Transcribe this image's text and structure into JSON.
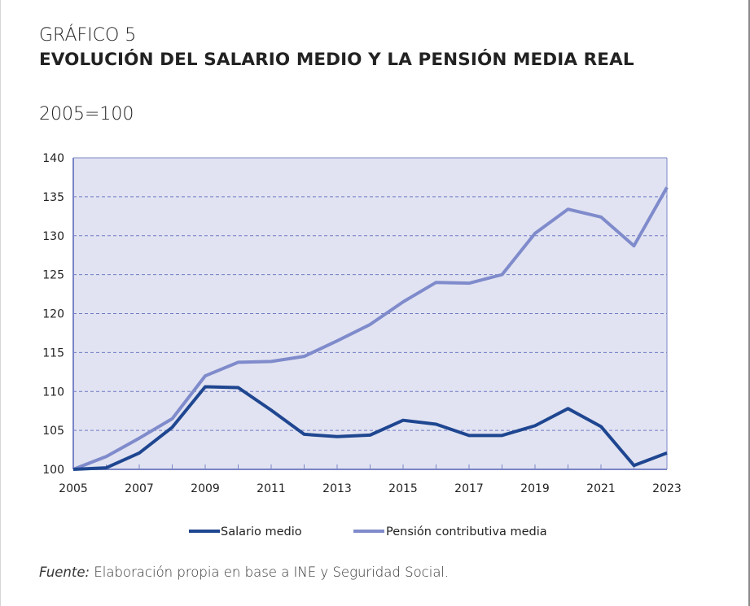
{
  "header": {
    "figure_label": "GRÁFICO 5",
    "title": "EVOLUCIÓN DEL SALARIO MEDIO Y LA PENSIÓN MEDIA REAL",
    "units": "2005=100"
  },
  "source": {
    "label": "Fuente:",
    "text": "Elaboración propia en base a INE y Seguridad Social."
  },
  "colors": {
    "plot_background": "#e1e3f2",
    "axis": "#7b86c6",
    "gridline": "#6f7bc2",
    "salario": "#1f4690",
    "pension": "#7f8bcb"
  },
  "chart_data": {
    "type": "line",
    "title": "EVOLUCIÓN DEL SALARIO MEDIO Y LA PENSIÓN MEDIA REAL",
    "subtitle": "2005=100",
    "xlabel": "",
    "ylabel": "",
    "x": [
      2005,
      2006,
      2007,
      2008,
      2009,
      2010,
      2011,
      2012,
      2013,
      2014,
      2015,
      2016,
      2017,
      2018,
      2019,
      2020,
      2021,
      2022,
      2023
    ],
    "x_tick_labels": [
      "2005",
      "2007",
      "2009",
      "2011",
      "2013",
      "2015",
      "2017",
      "2019",
      "2021",
      "2023"
    ],
    "y_ticks": [
      100,
      105,
      110,
      115,
      120,
      125,
      130,
      135,
      140
    ],
    "y_tick_labels": [
      "100",
      "105",
      "110",
      "115",
      "120",
      "125",
      "130",
      "135",
      "140"
    ],
    "xlim": [
      2005,
      2023
    ],
    "ylim": [
      100,
      140
    ],
    "grid": "horizontal-dashed",
    "legend": "bottom-center",
    "series": [
      {
        "name": "Salario medio",
        "color": "#1f4690",
        "values": [
          100.0,
          100.2,
          102.1,
          105.4,
          110.6,
          110.5,
          107.6,
          104.5,
          104.2,
          104.4,
          106.3,
          105.8,
          104.35,
          104.35,
          105.6,
          107.8,
          105.5,
          100.5,
          102.1
        ]
      },
      {
        "name": "Pensión contributiva media",
        "color": "#7f8bcb",
        "values": [
          100.0,
          101.65,
          104.0,
          106.5,
          112.0,
          113.75,
          113.85,
          114.5,
          116.5,
          118.6,
          121.5,
          124.0,
          123.9,
          125.0,
          130.3,
          133.4,
          132.4,
          128.7,
          136.2
        ]
      }
    ]
  }
}
